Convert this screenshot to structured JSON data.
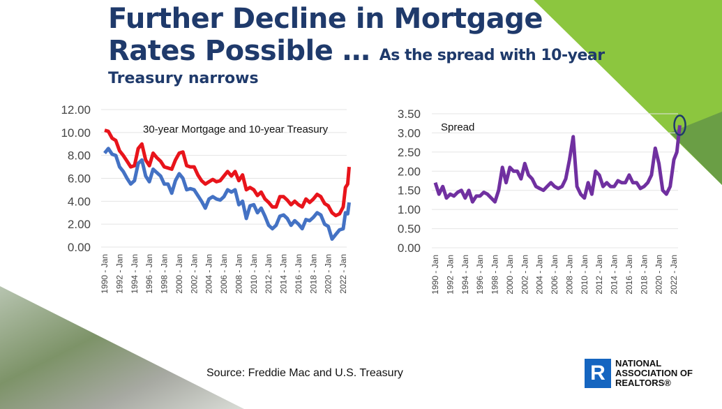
{
  "title": {
    "line1": "Further Decline in Mortgage",
    "line2": "Rates Possible …",
    "sub1": "As the spread with 10-year",
    "sub2": "Treasury narrows"
  },
  "source": "Source: Freddie Mac and U.S. Treasury",
  "logo": {
    "letter": "R",
    "line1": "NATIONAL",
    "line2": "ASSOCIATION OF",
    "line3": "REALTORS®"
  },
  "chart_data": [
    {
      "type": "line",
      "title": "30-year Mortgage and 10-year Treasury",
      "ylim": [
        0,
        12
      ],
      "yticks": [
        "0.00",
        "2.00",
        "4.00",
        "6.00",
        "8.00",
        "10.00",
        "12.00"
      ],
      "xticks": [
        "1990 - Jan",
        "1992 - Jan",
        "1994 - Jan",
        "1996 - Jan",
        "1998 - Jan",
        "2000 - Jan",
        "2002 - Jan",
        "2004 - Jan",
        "2006 - Jan",
        "2008 - Jan",
        "2010 - Jan",
        "2012 - Jan",
        "2014 - Jan",
        "2016 - Jan",
        "2018 - Jan",
        "2020 - Jan",
        "2022 - Jan"
      ],
      "series": [
        {
          "name": "30-year Mortgage",
          "color": "#e8141b",
          "x": [
            1990,
            1990.5,
            1991,
            1991.5,
            1992,
            1992.5,
            1993,
            1993.5,
            1994,
            1994.5,
            1995,
            1995.5,
            1996,
            1996.5,
            1997,
            1997.5,
            1998,
            1998.5,
            1999,
            1999.5,
            2000,
            2000.5,
            2001,
            2001.5,
            2002,
            2002.5,
            2003,
            2003.5,
            2004,
            2004.5,
            2005,
            2005.5,
            2006,
            2006.5,
            2007,
            2007.5,
            2008,
            2008.5,
            2009,
            2009.5,
            2010,
            2010.5,
            2011,
            2011.5,
            2012,
            2012.5,
            2013,
            2013.5,
            2014,
            2014.5,
            2015,
            2015.5,
            2016,
            2016.5,
            2017,
            2017.5,
            2018,
            2018.5,
            2019,
            2019.5,
            2020,
            2020.5,
            2021,
            2021.5,
            2022,
            2022.3,
            2022.6,
            2022.8
          ],
          "values": [
            10.2,
            10.1,
            9.5,
            9.3,
            8.4,
            8.0,
            7.5,
            7.0,
            7.1,
            8.6,
            9.0,
            7.6,
            7.1,
            8.2,
            7.8,
            7.5,
            7.0,
            6.9,
            6.8,
            7.6,
            8.2,
            8.3,
            7.1,
            7.0,
            7.0,
            6.3,
            5.8,
            5.5,
            5.7,
            5.9,
            5.7,
            5.8,
            6.2,
            6.6,
            6.2,
            6.6,
            5.8,
            6.3,
            5.0,
            5.2,
            5.0,
            4.5,
            4.8,
            4.2,
            3.9,
            3.5,
            3.5,
            4.4,
            4.4,
            4.1,
            3.7,
            4.0,
            3.7,
            3.5,
            4.2,
            3.9,
            4.2,
            4.6,
            4.4,
            3.8,
            3.6,
            3.0,
            2.75,
            2.9,
            3.5,
            5.2,
            5.5,
            7.0
          ]
        },
        {
          "name": "10-year Treasury",
          "color": "#4472c4",
          "x": [
            1990,
            1990.5,
            1991,
            1991.5,
            1992,
            1992.5,
            1993,
            1993.5,
            1994,
            1994.5,
            1995,
            1995.5,
            1996,
            1996.5,
            1997,
            1997.5,
            1998,
            1998.5,
            1999,
            1999.5,
            2000,
            2000.5,
            2001,
            2001.5,
            2002,
            2002.5,
            2003,
            2003.5,
            2004,
            2004.5,
            2005,
            2005.5,
            2006,
            2006.5,
            2007,
            2007.5,
            2008,
            2008.5,
            2009,
            2009.5,
            2010,
            2010.5,
            2011,
            2011.5,
            2012,
            2012.5,
            2013,
            2013.5,
            2014,
            2014.5,
            2015,
            2015.5,
            2016,
            2016.5,
            2017,
            2017.5,
            2018,
            2018.5,
            2019,
            2019.5,
            2020,
            2020.5,
            2021,
            2021.5,
            2022,
            2022.3,
            2022.6,
            2022.8
          ],
          "values": [
            8.2,
            8.6,
            8.1,
            8.0,
            7.0,
            6.6,
            6.0,
            5.5,
            5.8,
            7.3,
            7.6,
            6.2,
            5.7,
            6.8,
            6.5,
            6.2,
            5.5,
            5.5,
            4.7,
            5.8,
            6.4,
            6.0,
            5.0,
            5.1,
            5.0,
            4.5,
            4.0,
            3.4,
            4.2,
            4.4,
            4.2,
            4.1,
            4.4,
            5.0,
            4.8,
            5.0,
            3.7,
            4.0,
            2.5,
            3.6,
            3.7,
            3.0,
            3.4,
            2.7,
            1.9,
            1.6,
            1.9,
            2.7,
            2.8,
            2.5,
            1.9,
            2.3,
            2.0,
            1.6,
            2.4,
            2.3,
            2.6,
            3.0,
            2.8,
            2.0,
            1.8,
            0.7,
            1.1,
            1.5,
            1.6,
            3.0,
            2.9,
            3.9
          ]
        }
      ]
    },
    {
      "type": "line",
      "title": "Spread",
      "ylim": [
        0,
        3.5
      ],
      "yticks": [
        "0.00",
        "0.50",
        "1.00",
        "1.50",
        "2.00",
        "2.50",
        "3.00",
        "3.50"
      ],
      "xticks": [
        "1990 - Jan",
        "1992 - Jan",
        "1994 - Jan",
        "1996 - Jan",
        "1998 - Jan",
        "2000 - Jan",
        "2002 - Jan",
        "2004 - Jan",
        "2006 - Jan",
        "2008 - Jan",
        "2010 - Jan",
        "2012 - Jan",
        "2014 - Jan",
        "2016 - Jan",
        "2018 - Jan",
        "2020 - Jan",
        "2022 - Jan"
      ],
      "annotation": "circle around latest value",
      "series": [
        {
          "name": "Spread",
          "color": "#7030a0",
          "x": [
            1990,
            1990.5,
            1991,
            1991.5,
            1992,
            1992.5,
            1993,
            1993.5,
            1994,
            1994.5,
            1995,
            1995.5,
            1996,
            1996.5,
            1997,
            1997.5,
            1998,
            1998.5,
            1999,
            1999.5,
            2000,
            2000.5,
            2001,
            2001.5,
            2002,
            2002.5,
            2003,
            2003.5,
            2004,
            2004.5,
            2005,
            2005.5,
            2006,
            2006.5,
            2007,
            2007.5,
            2008,
            2008.5,
            2009,
            2009.5,
            2010,
            2010.5,
            2011,
            2011.5,
            2012,
            2012.5,
            2013,
            2013.5,
            2014,
            2014.5,
            2015,
            2015.5,
            2016,
            2016.5,
            2017,
            2017.5,
            2018,
            2018.5,
            2019,
            2019.5,
            2020,
            2020.5,
            2021,
            2021.5,
            2022,
            2022.4,
            2022.8
          ],
          "values": [
            1.7,
            1.4,
            1.6,
            1.3,
            1.4,
            1.35,
            1.45,
            1.5,
            1.3,
            1.5,
            1.2,
            1.35,
            1.35,
            1.45,
            1.4,
            1.3,
            1.2,
            1.5,
            2.1,
            1.7,
            2.1,
            2.0,
            2.0,
            1.8,
            2.2,
            1.9,
            1.8,
            1.6,
            1.55,
            1.5,
            1.6,
            1.7,
            1.6,
            1.55,
            1.6,
            1.8,
            2.3,
            2.9,
            1.6,
            1.4,
            1.3,
            1.7,
            1.4,
            2.0,
            1.9,
            1.6,
            1.7,
            1.6,
            1.6,
            1.75,
            1.7,
            1.7,
            1.9,
            1.7,
            1.7,
            1.55,
            1.6,
            1.7,
            1.9,
            2.6,
            2.2,
            1.5,
            1.4,
            1.6,
            2.3,
            2.5,
            3.2
          ]
        }
      ]
    }
  ]
}
